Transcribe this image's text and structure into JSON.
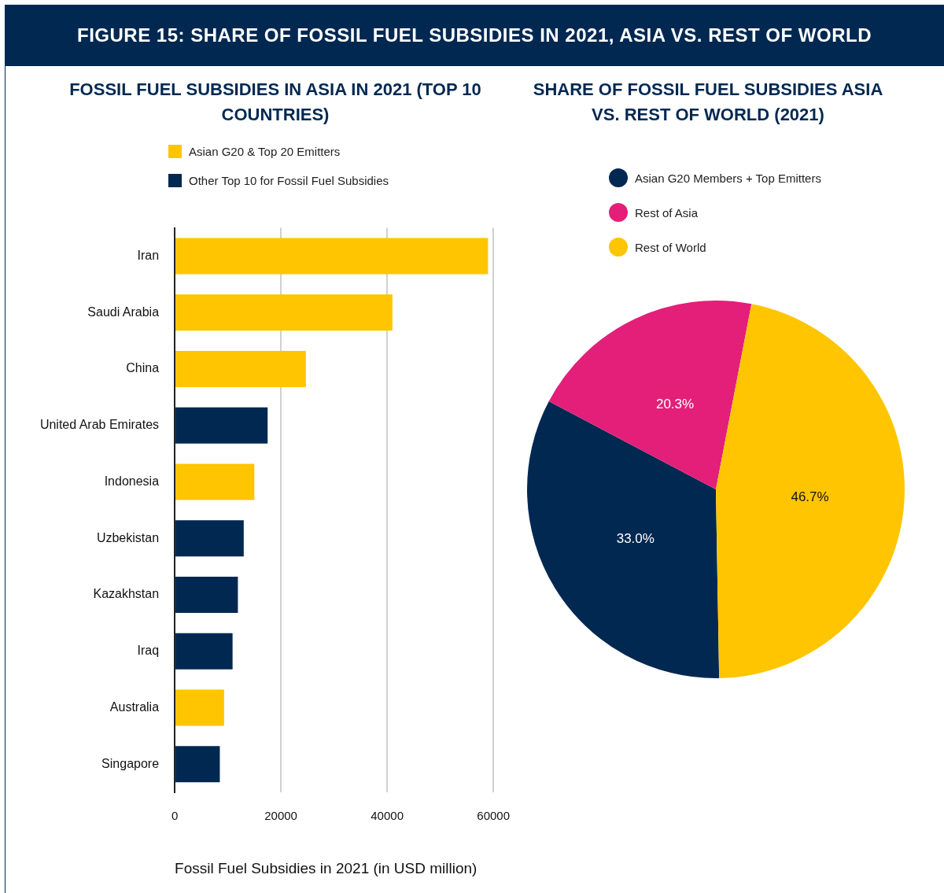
{
  "chart_data": [
    {
      "type": "bar",
      "orientation": "horizontal",
      "stacked": true,
      "title": "FOSSIL FUEL SUBSIDIES IN ASIA IN 2021 (TOP 10 COUNTRIES)",
      "xlabel": "Fossil Fuel Subsidies in 2021 (in USD million)",
      "annotations": [
        "FIGURE 15: SHARE OF FOSSIL FUEL SUBSIDIES IN 2021, ASIA VS. REST OF WORLD"
      ],
      "categories": [
        "Iran",
        "Saudi Arabia",
        "China",
        "United Arab Emirates",
        "Indonesia",
        "Uzbekistan",
        "Kazakhstan",
        "Iraq",
        "Australia",
        "Singapore"
      ],
      "series": [
        {
          "name": "Asian G20 & Top 20 Emitters",
          "color": "#ffc500",
          "values": [
            59000,
            41000,
            24700,
            null,
            15000,
            null,
            null,
            null,
            9300,
            null
          ]
        },
        {
          "name": "Other Top 10 for Fossil Fuel Subsidies",
          "color": "#002851",
          "values": [
            null,
            null,
            null,
            17500,
            null,
            13000,
            11900,
            10900,
            null,
            8500
          ]
        }
      ],
      "xlim": [
        0,
        60000
      ],
      "xticks": [
        0,
        20000,
        40000,
        60000
      ],
      "grid": "x",
      "legend": "top"
    },
    {
      "type": "pie",
      "title": "SHARE OF FOSSIL FUEL SUBSIDIES ASIA VS. REST OF WORLD (2021)",
      "categories": [
        "Asian G20 Members + Top Emitters",
        "Rest of Asia",
        "Rest of World"
      ],
      "values": [
        33.0,
        20.3,
        46.7
      ],
      "colors": [
        "#002851",
        "#e31f79",
        "#ffc500"
      ],
      "value_labels": [
        "33.0%",
        "20.3%",
        "46.7%"
      ],
      "legend": "top"
    }
  ]
}
